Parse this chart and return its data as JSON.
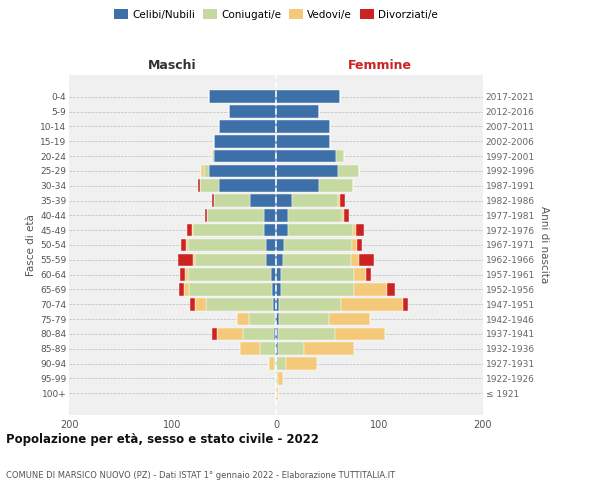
{
  "age_groups": [
    "100+",
    "95-99",
    "90-94",
    "85-89",
    "80-84",
    "75-79",
    "70-74",
    "65-69",
    "60-64",
    "55-59",
    "50-54",
    "45-49",
    "40-44",
    "35-39",
    "30-34",
    "25-29",
    "20-24",
    "15-19",
    "10-14",
    "5-9",
    "0-4"
  ],
  "birth_years": [
    "≤ 1921",
    "1922-1926",
    "1927-1931",
    "1932-1936",
    "1937-1941",
    "1942-1946",
    "1947-1951",
    "1952-1956",
    "1957-1961",
    "1962-1966",
    "1967-1971",
    "1972-1976",
    "1977-1981",
    "1982-1986",
    "1987-1991",
    "1992-1996",
    "1997-2001",
    "2002-2006",
    "2007-2011",
    "2012-2016",
    "2017-2021"
  ],
  "colors": {
    "celibi": "#3d6fa8",
    "coniugati": "#c5d9a0",
    "vedovi": "#f5c97a",
    "divorziati": "#cc2222"
  },
  "males": {
    "celibi": [
      0,
      0,
      0,
      0,
      2,
      1,
      3,
      4,
      5,
      10,
      10,
      12,
      12,
      25,
      55,
      65,
      60,
      60,
      55,
      45,
      65
    ],
    "coniugati": [
      0,
      0,
      2,
      15,
      30,
      25,
      65,
      80,
      80,
      68,
      75,
      68,
      55,
      35,
      18,
      5,
      2,
      0,
      0,
      0,
      0
    ],
    "vedovi": [
      0,
      0,
      5,
      20,
      25,
      12,
      10,
      5,
      3,
      2,
      2,
      1,
      0,
      0,
      0,
      2,
      0,
      0,
      0,
      0,
      0
    ],
    "divorziati": [
      0,
      0,
      0,
      0,
      5,
      0,
      5,
      5,
      5,
      15,
      5,
      5,
      2,
      2,
      2,
      0,
      0,
      0,
      0,
      0,
      0
    ]
  },
  "females": {
    "nubili": [
      0,
      0,
      0,
      2,
      2,
      3,
      3,
      5,
      5,
      7,
      8,
      12,
      12,
      15,
      42,
      60,
      58,
      52,
      52,
      42,
      62
    ],
    "coniugati": [
      0,
      2,
      10,
      25,
      55,
      48,
      60,
      70,
      70,
      65,
      65,
      62,
      52,
      45,
      32,
      20,
      8,
      0,
      0,
      0,
      0
    ],
    "vedovi": [
      2,
      5,
      30,
      48,
      48,
      40,
      60,
      32,
      12,
      8,
      5,
      3,
      2,
      2,
      0,
      0,
      0,
      0,
      0,
      0,
      0
    ],
    "divorziati": [
      0,
      0,
      0,
      0,
      0,
      0,
      5,
      8,
      5,
      15,
      5,
      8,
      5,
      5,
      0,
      0,
      0,
      0,
      0,
      0,
      0
    ]
  },
  "title": "Popolazione per età, sesso e stato civile - 2022",
  "subtitle": "COMUNE DI MARSICO NUOVO (PZ) - Dati ISTAT 1° gennaio 2022 - Elaborazione TUTTITALIA.IT",
  "xlabel_left": "Maschi",
  "xlabel_right": "Femmine",
  "ylabel_left": "Fasce di età",
  "ylabel_right": "Anni di nascita",
  "xlim": 200,
  "bg_color": "#f0f0f0",
  "grid_color": "#cccccc"
}
